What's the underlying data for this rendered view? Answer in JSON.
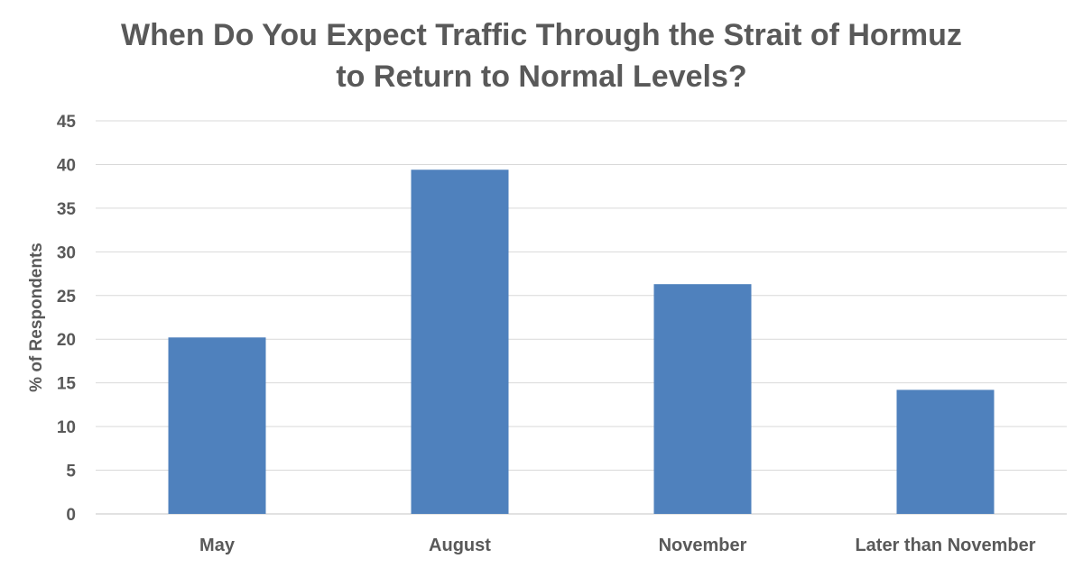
{
  "chart_data": {
    "type": "bar",
    "title_lines": [
      "When Do You Expect Traffic Through the Strait of Hormuz",
      "to Return to Normal Levels?"
    ],
    "xlabel": "",
    "ylabel": "% of Respondents",
    "categories": [
      "May",
      "August",
      "November",
      "Later than November"
    ],
    "values": [
      20.2,
      39.4,
      26.3,
      14.2
    ],
    "ylim": [
      0,
      45
    ],
    "yticks": [
      0,
      5,
      10,
      15,
      20,
      25,
      30,
      35,
      40,
      45
    ],
    "grid": true,
    "legend": "none",
    "bar_color": "#4f81bd",
    "grid_color": "#d9d9d9",
    "text_color": "#595959"
  }
}
